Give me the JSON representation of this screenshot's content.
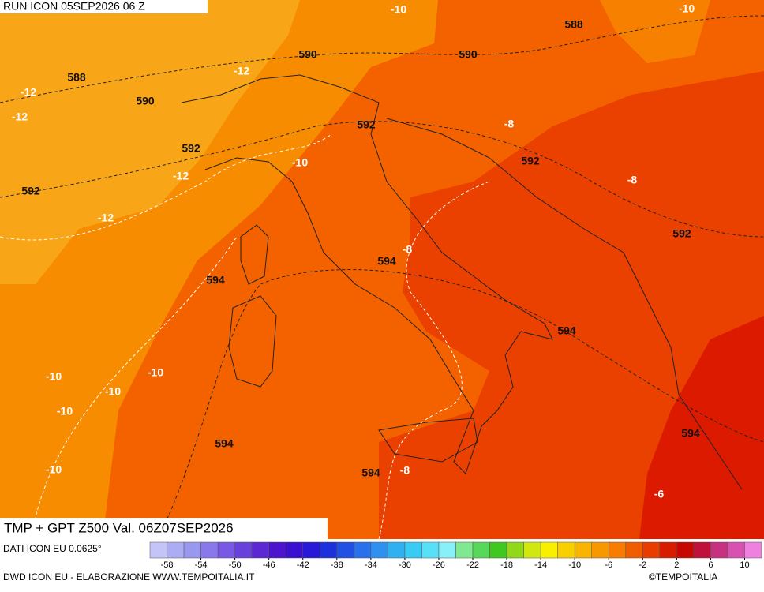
{
  "header": {
    "run_label": "RUN ICON 05SEP2026 06 Z"
  },
  "map": {
    "contour_labels": [
      -10,
      -10,
      588,
      590,
      590,
      588,
      -12,
      -12,
      590,
      -12,
      592,
      -8,
      592,
      -10,
      592,
      -12,
      -8,
      592,
      -12,
      592,
      -8,
      594,
      594,
      594,
      -10,
      -10,
      -10,
      -10,
      594,
      594,
      -10,
      594,
      -8,
      -6
    ]
  },
  "footer": {
    "title": "TMP + GPT Z500 Val. 06Z07SEP2026",
    "source": "DATI ICON EU 0.0625°",
    "credit": "DWD ICON EU - ELABORAZIONE WWW.TEMPOITALIA.IT",
    "copyright": "©TEMPOITALIA"
  },
  "legend": {
    "range": [
      -60,
      12
    ],
    "colors": [
      "#c4c4f8",
      "#acacf4",
      "#9898f0",
      "#8878ec",
      "#7858e4",
      "#6840dc",
      "#5c28d4",
      "#4c14cc",
      "#3c10d0",
      "#2818d8",
      "#1c30dc",
      "#2050e4",
      "#2870ec",
      "#3090f0",
      "#30b0f0",
      "#38ccf4",
      "#58e0f8",
      "#88f0f8",
      "#80e890",
      "#58d858",
      "#40c820",
      "#90d818",
      "#d0e810",
      "#f8f000",
      "#f8d000",
      "#f8b400",
      "#f89800",
      "#f87c00",
      "#f05c00",
      "#e83c00",
      "#d81c00",
      "#c80800",
      "#c0103c",
      "#c83080",
      "#d850b0",
      "#f080e0"
    ],
    "ticks": [
      -58,
      -54,
      -50,
      -46,
      -42,
      -38,
      -34,
      -30,
      -26,
      -22,
      -18,
      -14,
      -10,
      -6,
      -2,
      2,
      6,
      10
    ]
  }
}
